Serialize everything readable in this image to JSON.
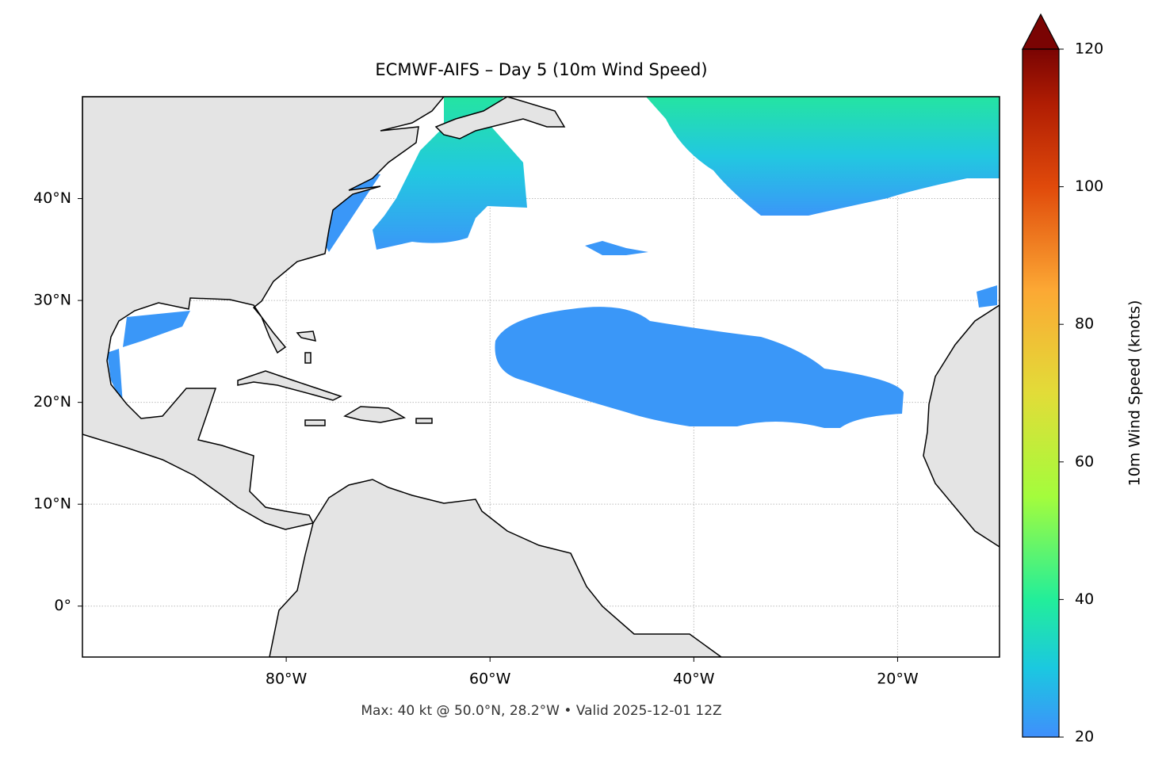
{
  "map": {
    "title": "ECMWF-AIFS – Day 5 (10m Wind Speed)",
    "footer": "Max: 40 kt @ 50.0°N, 28.2°W • Valid 2025-12-01 12Z",
    "xlim": [
      -100,
      -10
    ],
    "ylim": [
      -5,
      50
    ],
    "xticks": [
      {
        "value": -80,
        "label": "80°W"
      },
      {
        "value": -60,
        "label": "60°W"
      },
      {
        "value": -40,
        "label": "40°W"
      },
      {
        "value": -20,
        "label": "20°W"
      }
    ],
    "yticks": [
      {
        "value": 0,
        "label": "0°"
      },
      {
        "value": 10,
        "label": "10°N"
      },
      {
        "value": 20,
        "label": "20°N"
      },
      {
        "value": 30,
        "label": "30°N"
      },
      {
        "value": 40,
        "label": "40°N"
      }
    ],
    "grid": true,
    "colorbar": {
      "label": "10m Wind Speed (knots)",
      "lim": [
        20,
        120
      ],
      "ticks": [
        20,
        40,
        60,
        80,
        100,
        120
      ]
    }
  }
}
